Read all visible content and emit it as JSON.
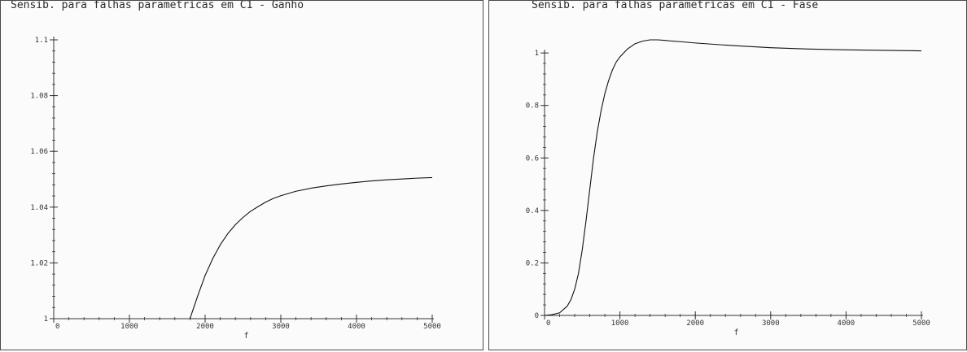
{
  "charts": [
    {
      "title": "Sensib. para falhas parametricas em  C1 - Ganho"
    },
    {
      "title": "Sensib. para falhas parametricas em C1 - Fase"
    }
  ],
  "chart_data": [
    {
      "type": "line",
      "title": "Sensib. para falhas parametricas em  C1 - Ganho",
      "xlabel": "f",
      "ylabel": "",
      "xlim": [
        0,
        5000
      ],
      "ylim": [
        1.0,
        1.1
      ],
      "x_ticks": [
        0,
        1000,
        2000,
        3000,
        4000,
        5000
      ],
      "x_tick_labels": [
        "0",
        "1000",
        "2000",
        "3000",
        "4000",
        "5000"
      ],
      "y_ticks": [
        1.0,
        1.02,
        1.04,
        1.06,
        1.08,
        1.1
      ],
      "y_tick_labels": [
        "1",
        "1.02",
        "1.04",
        "1.06",
        "1.08",
        "1.1"
      ],
      "grid": false,
      "series": [
        {
          "x": [
            1800,
            1900,
            2000,
            2100,
            2200,
            2300,
            2400,
            2500,
            2600,
            2700,
            2800,
            2900,
            3000,
            3200,
            3400,
            3600,
            3800,
            4000,
            4200,
            4400,
            4600,
            4800,
            5000
          ],
          "y": [
            1.0,
            1.008,
            1.0155,
            1.0215,
            1.0265,
            1.0305,
            1.0337,
            1.0363,
            1.0385,
            1.0402,
            1.0418,
            1.0431,
            1.0441,
            1.0457,
            1.0468,
            1.0476,
            1.0483,
            1.0489,
            1.0494,
            1.0498,
            1.0501,
            1.0504,
            1.0506
          ]
        }
      ]
    },
    {
      "type": "line",
      "title": "Sensib. para falhas parametricas em C1 - Fase",
      "xlabel": "f",
      "ylabel": "",
      "xlim": [
        0,
        5000
      ],
      "ylim": [
        0,
        1.05
      ],
      "x_ticks": [
        0,
        1000,
        2000,
        3000,
        4000,
        5000
      ],
      "x_tick_labels": [
        "0",
        "1000",
        "2000",
        "3000",
        "4000",
        "5000"
      ],
      "y_ticks": [
        0,
        0.2,
        0.4,
        0.6,
        0.8,
        1.0
      ],
      "y_tick_labels": [
        "0",
        "0.2",
        "0.4",
        "0.6",
        "0.8",
        "1"
      ],
      "grid": false,
      "series": [
        {
          "x": [
            0,
            100,
            200,
            300,
            350,
            400,
            450,
            500,
            550,
            600,
            650,
            700,
            750,
            800,
            850,
            900,
            950,
            1000,
            1100,
            1200,
            1300,
            1400,
            1500,
            1600,
            1700,
            1800,
            2000,
            2500,
            3000,
            3500,
            4000,
            4500,
            5000
          ],
          "y": [
            0,
            0.003,
            0.01,
            0.035,
            0.06,
            0.1,
            0.16,
            0.25,
            0.36,
            0.48,
            0.6,
            0.7,
            0.78,
            0.845,
            0.895,
            0.935,
            0.965,
            0.985,
            1.015,
            1.035,
            1.045,
            1.05,
            1.05,
            1.048,
            1.045,
            1.043,
            1.038,
            1.028,
            1.02,
            1.015,
            1.012,
            1.01,
            1.008
          ]
        }
      ]
    }
  ]
}
